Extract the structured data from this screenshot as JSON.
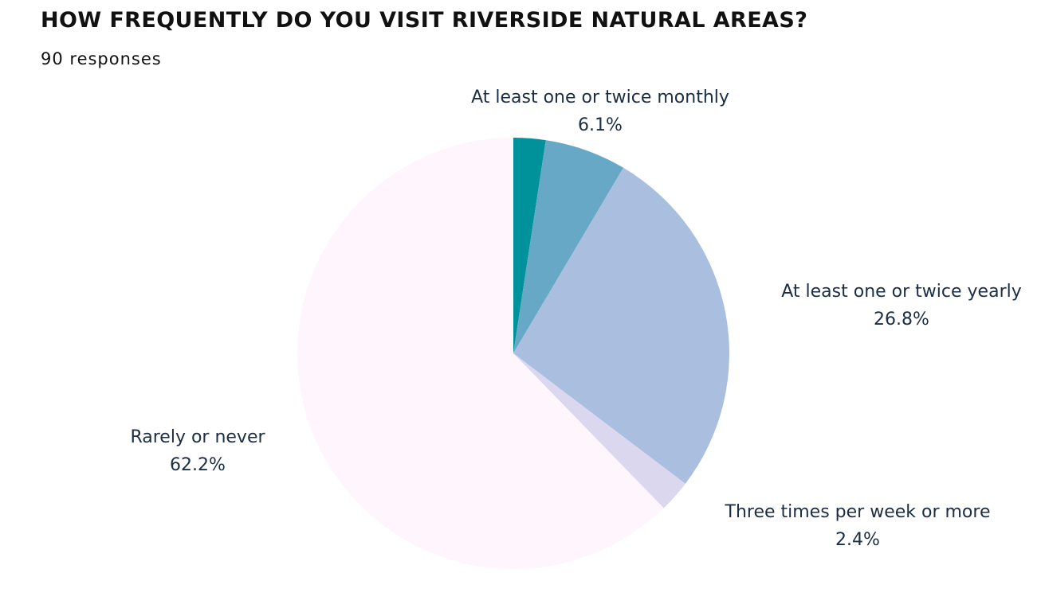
{
  "chart_data": {
    "type": "pie",
    "title": "HOW FREQUENTLY DO YOU VISIT RIVERSIDE NATURAL AREAS?",
    "subtitle": "90 responses",
    "slices": [
      {
        "label": "Three times per week or more",
        "value": 2.4,
        "value_label": "2.4%",
        "color": "#00929a"
      },
      {
        "label": "At least one or twice monthly",
        "value": 6.1,
        "value_label": "6.1%",
        "color": "#67a8c6"
      },
      {
        "label": "At least one or twice yearly",
        "value": 26.8,
        "value_label": "26.8%",
        "color": "#aabfdf"
      },
      {
        "label": "Three times per week or more",
        "value": 2.4,
        "value_label": "2.4%",
        "color": "#dbd7ef"
      },
      {
        "label": "Rarely or never",
        "value": 62.2,
        "value_label": "62.2%",
        "color": "#fff6fd"
      }
    ]
  }
}
